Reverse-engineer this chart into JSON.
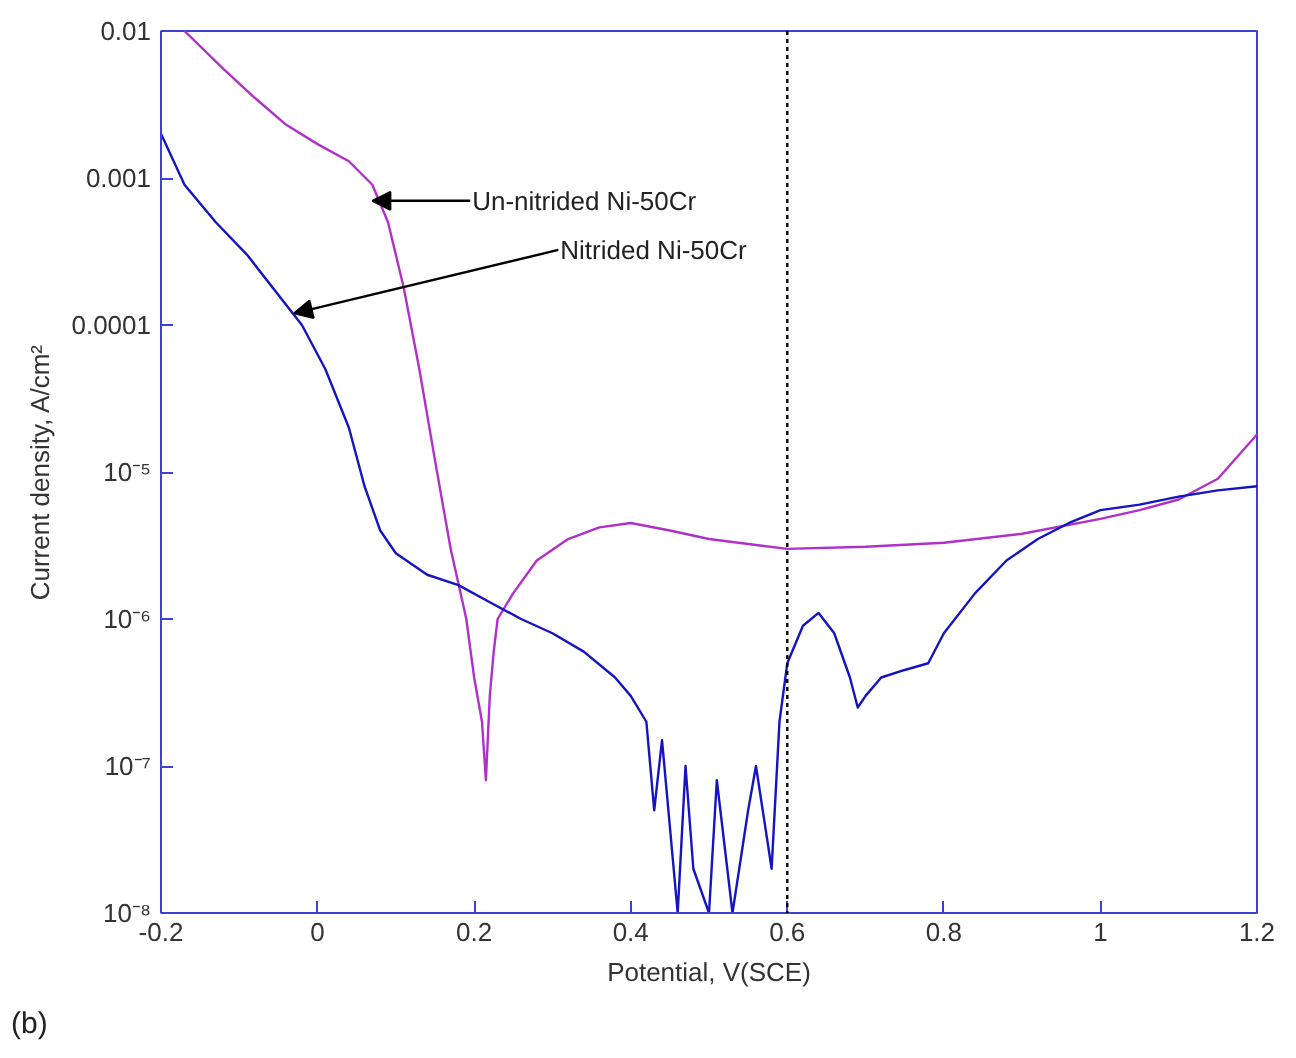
{
  "chart_data": {
    "type": "line",
    "xlabel": "Potential, V(SCE)",
    "ylabel": "Current density, A/cm²",
    "log": "y",
    "grid": false,
    "xlim": [
      -0.2,
      1.2
    ],
    "xticks": [
      -0.2,
      0,
      0.2,
      0.4,
      0.6,
      0.8,
      1,
      1.2
    ],
    "ylim": [
      1e-08,
      0.01
    ],
    "yticks": [
      0.01,
      0.001,
      0.0001,
      {
        "value": 1e-05,
        "label": "10⁻⁵"
      },
      {
        "value": 1e-06,
        "label": "10⁻⁶"
      },
      {
        "value": 1e-07,
        "label": "10⁻⁷"
      },
      {
        "value": 1e-08,
        "label": "10⁻⁸"
      }
    ],
    "series": [
      {
        "color": "#b030c8",
        "x": [
          -0.17,
          -0.12,
          -0.08,
          -0.04,
          0,
          0.04,
          0.07,
          0.09,
          0.11,
          0.13,
          0.15,
          0.17,
          0.19,
          0.2,
          0.21,
          0.215,
          0.22,
          0.225,
          0.23,
          0.25,
          0.28,
          0.32,
          0.36,
          0.4,
          0.45,
          0.5,
          0.6,
          0.7,
          0.8,
          0.9,
          1.0,
          1.05,
          1.1,
          1.15,
          1.2
        ],
        "values": [
          0.01,
          0.0055,
          0.0035,
          0.0023,
          0.0017,
          0.0013,
          0.0009,
          0.0005,
          0.00018,
          5e-05,
          1.2e-05,
          3e-06,
          1e-06,
          4e-07,
          2e-07,
          8e-08,
          3e-07,
          6e-07,
          1e-06,
          1.5e-06,
          2.5e-06,
          3.5e-06,
          4.2e-06,
          4.5e-06,
          4e-06,
          3.5e-06,
          3e-06,
          3.1e-06,
          3.3e-06,
          3.8e-06,
          4.8e-06,
          5.5e-06,
          6.5e-06,
          9e-06,
          1.8e-05
        ]
      },
      {
        "color": "#1414c0",
        "x": [
          -0.2,
          -0.17,
          -0.13,
          -0.09,
          -0.05,
          -0.02,
          0.01,
          0.04,
          0.06,
          0.08,
          0.1,
          0.14,
          0.18,
          0.22,
          0.26,
          0.3,
          0.34,
          0.38,
          0.4,
          0.42,
          0.43,
          0.44,
          0.46,
          0.47,
          0.48,
          0.5,
          0.51,
          0.53,
          0.55,
          0.56,
          0.58,
          0.59,
          0.6,
          0.62,
          0.64,
          0.66,
          0.68,
          0.69,
          0.7,
          0.72,
          0.75,
          0.78,
          0.8,
          0.84,
          0.88,
          0.92,
          0.96,
          1.0,
          1.05,
          1.1,
          1.15,
          1.2
        ],
        "values": [
          0.002,
          0.0009,
          0.0005,
          0.0003,
          0.00016,
          0.0001,
          5e-05,
          2e-05,
          8e-06,
          4e-06,
          2.8e-06,
          2e-06,
          1.7e-06,
          1.3e-06,
          1e-06,
          8e-07,
          6e-07,
          4e-07,
          3e-07,
          2e-07,
          5e-08,
          1.5e-07,
          1e-08,
          1e-07,
          2e-08,
          1e-08,
          8e-08,
          1e-08,
          5e-08,
          1e-07,
          2e-08,
          2e-07,
          5e-07,
          9e-07,
          1.1e-06,
          8e-07,
          4e-07,
          2.5e-07,
          3e-07,
          4e-07,
          4.5e-07,
          5e-07,
          8e-07,
          1.5e-06,
          2.5e-06,
          3.5e-06,
          4.5e-06,
          5.5e-06,
          6e-06,
          6.8e-06,
          7.5e-06,
          8e-06
        ]
      }
    ],
    "ref_lines": [
      {
        "axis": "x",
        "value": 0.6,
        "color": "#000000",
        "line_style": "dotted"
      }
    ],
    "annotations": [
      {
        "text": "Un-nitrided Ni-50Cr",
        "x": 0.07,
        "y": 0.0007
      },
      {
        "text": "Nitrided Ni-50Cr",
        "x": -0.03,
        "y": 0.00012
      },
      "(b)"
    ]
  }
}
